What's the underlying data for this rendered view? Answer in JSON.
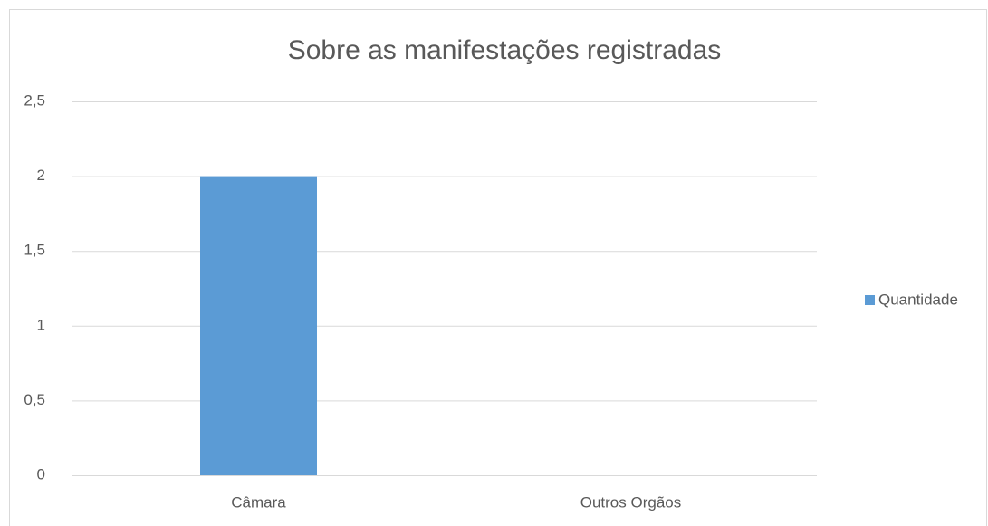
{
  "chart_data": {
    "type": "bar",
    "title": "Sobre as manifestações registradas",
    "categories": [
      "Câmara",
      "Outros Orgãos"
    ],
    "series": [
      {
        "name": "Quantidade",
        "color": "#5b9bd5",
        "values": [
          2,
          0
        ]
      }
    ],
    "ylim": [
      0,
      2.5
    ],
    "yticks": [
      0,
      {
        "value": 0.5,
        "label": "0,5"
      },
      1,
      {
        "value": 1.5,
        "label": "1,5"
      },
      2,
      {
        "value": 2.5,
        "label": "2,5"
      }
    ],
    "grid": true,
    "legend": "right"
  }
}
